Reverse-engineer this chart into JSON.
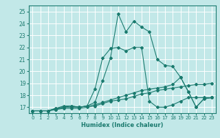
{
  "xlabel": "Humidex (Indice chaleur)",
  "ylabel": "",
  "xlim": [
    -0.5,
    23.5
  ],
  "ylim": [
    16.5,
    25.5
  ],
  "xticks": [
    0,
    1,
    2,
    3,
    4,
    5,
    6,
    7,
    8,
    9,
    10,
    11,
    12,
    13,
    14,
    15,
    16,
    17,
    18,
    19,
    20,
    21,
    22,
    23
  ],
  "yticks": [
    17,
    18,
    19,
    20,
    21,
    22,
    23,
    24,
    25
  ],
  "bg_color": "#c2e8e8",
  "grid_color": "#ffffff",
  "line_color": "#1a7a6e",
  "lines": [
    {
      "x": [
        0,
        1,
        2,
        3,
        4,
        5,
        6,
        7,
        8,
        9,
        10,
        11,
        12,
        13,
        14,
        15,
        16,
        17,
        18,
        19,
        20,
        21,
        22,
        23
      ],
      "y": [
        16.7,
        16.7,
        16.7,
        16.8,
        16.9,
        16.9,
        16.9,
        17.0,
        17.1,
        17.3,
        17.5,
        17.6,
        17.7,
        17.9,
        18.1,
        18.2,
        18.4,
        18.5,
        18.6,
        18.7,
        18.8,
        18.9,
        18.9,
        19.0
      ]
    },
    {
      "x": [
        0,
        1,
        2,
        3,
        4,
        5,
        6,
        7,
        8,
        9,
        10,
        11,
        12,
        13,
        14,
        15,
        16,
        17,
        18,
        19,
        20,
        21,
        22,
        23
      ],
      "y": [
        16.7,
        16.7,
        16.7,
        16.8,
        17.0,
        17.0,
        17.0,
        17.1,
        17.2,
        17.4,
        17.6,
        17.8,
        18.0,
        18.2,
        18.4,
        18.5,
        18.6,
        18.7,
        18.9,
        19.5,
        18.3,
        17.0,
        17.7,
        17.8
      ]
    },
    {
      "x": [
        0,
        1,
        2,
        3,
        4,
        5,
        6,
        7,
        8,
        9,
        10,
        11,
        12,
        13,
        14,
        15,
        16,
        17,
        18,
        19,
        20,
        21,
        22,
        23
      ],
      "y": [
        16.7,
        16.7,
        16.7,
        16.9,
        17.0,
        17.1,
        17.0,
        17.1,
        17.4,
        19.2,
        21.1,
        24.8,
        23.3,
        24.2,
        23.7,
        23.3,
        21.0,
        20.5,
        20.4,
        19.5,
        18.3,
        17.0,
        17.7,
        17.8
      ]
    },
    {
      "x": [
        0,
        1,
        2,
        3,
        4,
        5,
        6,
        7,
        8,
        9,
        10,
        11,
        12,
        13,
        14,
        15,
        16,
        17,
        18,
        19,
        20,
        21,
        22,
        23
      ],
      "y": [
        16.7,
        16.7,
        16.7,
        16.9,
        17.1,
        17.1,
        17.0,
        17.1,
        18.5,
        21.1,
        21.9,
        22.0,
        21.7,
        22.0,
        22.0,
        17.5,
        17.0,
        17.0,
        17.2,
        17.5,
        17.8,
        17.8,
        17.8,
        17.8
      ]
    }
  ]
}
